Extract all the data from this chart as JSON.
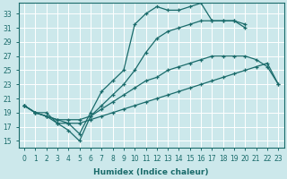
{
  "xlabel": "Humidex (Indice chaleur)",
  "bg_color": "#cce8eb",
  "grid_color": "#ffffff",
  "line_color": "#1a6b6b",
  "xlim": [
    -0.5,
    23.5
  ],
  "ylim": [
    14,
    34.5
  ],
  "yticks": [
    15,
    17,
    19,
    21,
    23,
    25,
    27,
    29,
    31,
    33
  ],
  "xticks": [
    0,
    1,
    2,
    3,
    4,
    5,
    6,
    7,
    8,
    9,
    10,
    11,
    12,
    13,
    14,
    15,
    16,
    17,
    18,
    19,
    20,
    21,
    22,
    23
  ],
  "s1_x": [
    0,
    1,
    2,
    3,
    4,
    5,
    6,
    7,
    8,
    9,
    10,
    11,
    12,
    13,
    14,
    15,
    16,
    17,
    18,
    19,
    20
  ],
  "s1_y": [
    20,
    19,
    18.5,
    17.5,
    16.5,
    15,
    18.5,
    20,
    21.5,
    23,
    25,
    27.5,
    29.5,
    30.5,
    31,
    31.5,
    32,
    32,
    32,
    32,
    31.5
  ],
  "s2_x": [
    0,
    1,
    2,
    3,
    4,
    5,
    6,
    7,
    8,
    9,
    10,
    11,
    12,
    13,
    14,
    15,
    16,
    17,
    18,
    19,
    20,
    21,
    22,
    23
  ],
  "s2_y": [
    20,
    19,
    18.5,
    18,
    17.5,
    17.5,
    18,
    18.5,
    19,
    19.5,
    20,
    20.5,
    21,
    21.5,
    22,
    22.5,
    23,
    23.5,
    24,
    24.5,
    25,
    25.5,
    26,
    23
  ],
  "s3_x": [
    0,
    1,
    2,
    3,
    4,
    5,
    6,
    7,
    8,
    9,
    10,
    11,
    12,
    13,
    14,
    15,
    16,
    17,
    18,
    19,
    20,
    21,
    22,
    23
  ],
  "s3_y": [
    20,
    19,
    19,
    17.5,
    17.5,
    16,
    19,
    22,
    23.5,
    25,
    31.5,
    33,
    34,
    33.5,
    33.5,
    34,
    34.5,
    32,
    32,
    32,
    31,
    null,
    null,
    null
  ],
  "s4_x": [
    0,
    1,
    2,
    3,
    4,
    5,
    6,
    7,
    8,
    9,
    10,
    11,
    12,
    13,
    14,
    15,
    16,
    17,
    18,
    19,
    20,
    21,
    22,
    23
  ],
  "s4_y": [
    20,
    19,
    18.5,
    18,
    18,
    18,
    18.5,
    19.5,
    20.5,
    21.5,
    22.5,
    23.5,
    24,
    25,
    25.5,
    26,
    26.5,
    27,
    27,
    27,
    27,
    26.5,
    25.5,
    23
  ]
}
